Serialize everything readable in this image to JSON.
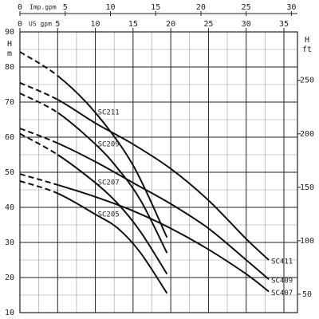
{
  "chart_data": {
    "type": "line",
    "xlabel": "US gpm",
    "x2label": "Imp.gpm",
    "ylabel": [
      "H",
      "m"
    ],
    "y2label": [
      "H",
      "ft"
    ],
    "xlim": [
      0,
      36.8
    ],
    "xticks": [
      0,
      5,
      10,
      15,
      20,
      25,
      30,
      35
    ],
    "x2lim": [
      0,
      30.67
    ],
    "x2ticks": [
      0,
      5,
      10,
      15,
      20,
      25,
      30
    ],
    "ylim": [
      10,
      90
    ],
    "yticks": [
      10,
      20,
      30,
      40,
      50,
      60,
      70,
      80,
      90
    ],
    "y2lim": [
      32.81,
      295.28
    ],
    "y2ticks": [
      50,
      100,
      150,
      200,
      250
    ],
    "grid": true,
    "dashed_below_x": 5,
    "series": [
      {
        "name": "SC211",
        "color": "#111111",
        "label_side": "left",
        "x": [
          0,
          5,
          10,
          15,
          19.5
        ],
        "values": [
          84.3,
          77.5,
          67,
          52,
          31.4
        ]
      },
      {
        "name": "SC209",
        "color": "#111111",
        "label_side": "left",
        "x": [
          0,
          5,
          10,
          13,
          16,
          19.5
        ],
        "values": [
          72.5,
          67,
          58,
          51,
          42,
          27
        ]
      },
      {
        "name": "SC207",
        "color": "#111111",
        "label_side": "left",
        "x": [
          0,
          5,
          10,
          13,
          16,
          19.5
        ],
        "values": [
          61,
          55,
          47,
          41,
          33,
          21
        ]
      },
      {
        "name": "SC205",
        "color": "#111111",
        "label_side": "left",
        "x": [
          0,
          5,
          10,
          13,
          16,
          19.5
        ],
        "values": [
          47.5,
          44,
          38,
          34,
          27,
          15.5
        ]
      },
      {
        "name": "SC411",
        "color": "#111111",
        "label_side": "right",
        "x": [
          0,
          5,
          10,
          15,
          20,
          25,
          30,
          33
        ],
        "values": [
          75.5,
          70.7,
          64,
          58,
          51,
          42,
          31,
          25
        ]
      },
      {
        "name": "SC409",
        "color": "#111111",
        "label_side": "right",
        "x": [
          0,
          5,
          10,
          15,
          20,
          25,
          30,
          33
        ],
        "values": [
          62.5,
          58.3,
          53,
          47,
          41,
          34,
          25,
          19.5
        ]
      },
      {
        "name": "SC407",
        "color": "#111111",
        "label_side": "right",
        "x": [
          0,
          5,
          10,
          15,
          20,
          25,
          30,
          33
        ],
        "values": [
          49.5,
          46.4,
          43,
          39,
          34,
          28,
          21,
          16
        ]
      }
    ]
  }
}
